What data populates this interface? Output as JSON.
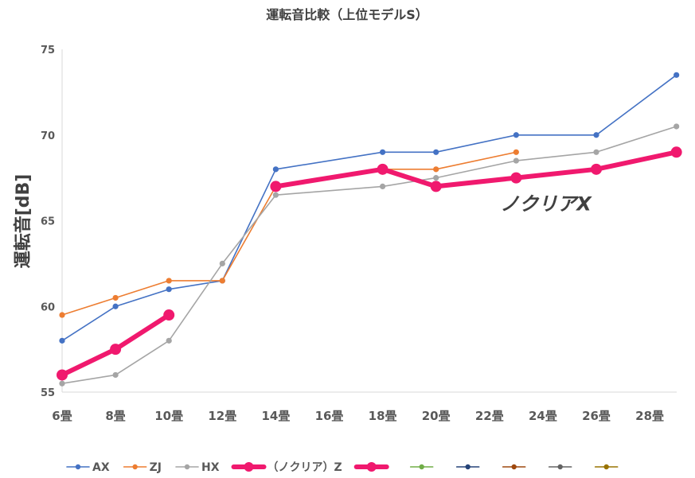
{
  "chart_data": {
    "type": "line",
    "title": "運転音比較（上位モデルS）",
    "ylabel": "運転音[dB]",
    "xlabel": "",
    "ylim": [
      55,
      75
    ],
    "yticks": [
      "55",
      "60",
      "65",
      "70",
      "75"
    ],
    "categories": [
      "6畳",
      "8畳",
      "10畳",
      "12畳",
      "14畳",
      "16畳",
      "18畳",
      "20畳",
      "22畳",
      "24畳",
      "26畳",
      "28畳"
    ],
    "grid": false,
    "legend": "bottom",
    "series": [
      {
        "name": "AX",
        "color": "#4472c4",
        "points": [
          [
            0,
            58
          ],
          [
            1,
            60
          ],
          [
            2,
            61
          ],
          [
            3,
            61.5
          ],
          [
            4,
            68
          ],
          [
            6,
            69
          ],
          [
            7,
            69
          ],
          [
            8.5,
            70
          ],
          [
            10,
            70
          ],
          [
            11.5,
            73.5
          ]
        ]
      },
      {
        "name": "ZJ",
        "color": "#ed7d31",
        "points": [
          [
            0,
            59.5
          ],
          [
            1,
            60.5
          ],
          [
            2,
            61.5
          ],
          [
            3,
            61.5
          ],
          [
            4,
            67
          ],
          [
            6,
            68
          ],
          [
            7,
            68
          ],
          [
            8.5,
            69
          ]
        ]
      },
      {
        "name": "HX",
        "color": "#a5a5a5",
        "points": [
          [
            0,
            55.5
          ],
          [
            1,
            56
          ],
          [
            2,
            58
          ],
          [
            3,
            62.5
          ],
          [
            4,
            66.5
          ],
          [
            6,
            67
          ],
          [
            7,
            67.5
          ],
          [
            8.5,
            68.5
          ],
          [
            10,
            69
          ],
          [
            11.5,
            70.5
          ]
        ]
      },
      {
        "name": "（ノクリア）Z",
        "color": "#f0196e",
        "bold": true,
        "points": [
          [
            4,
            67
          ],
          [
            6,
            68
          ],
          [
            7,
            67
          ],
          [
            8.5,
            67.5
          ],
          [
            10,
            68
          ],
          [
            11.5,
            69
          ]
        ]
      },
      {
        "name": "",
        "color": "#f0196e",
        "bold": true,
        "points": [
          [
            0,
            56
          ],
          [
            1,
            57.5
          ],
          [
            2,
            59.5
          ]
        ]
      }
    ],
    "extra_legend": [
      {
        "name": "",
        "color": "#70ad47"
      },
      {
        "name": "",
        "color": "#264478"
      },
      {
        "name": "",
        "color": "#9e480e"
      },
      {
        "name": "",
        "color": "#636363"
      },
      {
        "name": "",
        "color": "#997300"
      }
    ],
    "annotation": {
      "text": "ノクリアX",
      "color": "#f0196e",
      "at": [
        8.2,
        65.6
      ]
    }
  }
}
